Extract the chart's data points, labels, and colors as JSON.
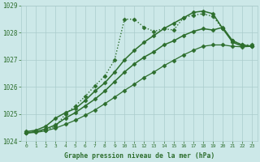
{
  "title": "Graphe pression niveau de la mer (hPa)",
  "bg_color": "#cce8e8",
  "grid_color": "#aacccc",
  "line_color": "#2d6e2d",
  "xlim": [
    -0.5,
    23.5
  ],
  "ylim": [
    1024.0,
    1029.0
  ],
  "yticks": [
    1024,
    1025,
    1026,
    1027,
    1028,
    1029
  ],
  "xticks": [
    0,
    1,
    2,
    3,
    4,
    5,
    6,
    7,
    8,
    9,
    10,
    11,
    12,
    13,
    14,
    15,
    16,
    17,
    18,
    19,
    20,
    21,
    22,
    23
  ],
  "series": [
    {
      "x": [
        0,
        1,
        2,
        3,
        4,
        5,
        6,
        7,
        8,
        9,
        10,
        11,
        12,
        13,
        14,
        15,
        16,
        17,
        18,
        19,
        20,
        21,
        22,
        23
      ],
      "y": [
        1024.3,
        1024.35,
        1024.4,
        1024.55,
        1025.0,
        1025.3,
        1025.65,
        1026.05,
        1026.4,
        1027.0,
        1028.5,
        1028.5,
        1028.2,
        1028.05,
        1028.15,
        1028.1,
        1028.55,
        1028.65,
        1028.7,
        1028.6,
        1028.15,
        1027.7,
        1027.55,
        1027.55
      ],
      "linestyle": ":",
      "marker": "D",
      "markersize": 2.5,
      "linewidth": 1.0
    },
    {
      "x": [
        0,
        1,
        2,
        3,
        4,
        5,
        6,
        7,
        8,
        9,
        10,
        11,
        12,
        13,
        14,
        15,
        16,
        17,
        18,
        19,
        20,
        21,
        22,
        23
      ],
      "y": [
        1024.35,
        1024.4,
        1024.55,
        1024.85,
        1025.05,
        1025.2,
        1025.5,
        1025.85,
        1026.15,
        1026.55,
        1027.0,
        1027.35,
        1027.65,
        1027.9,
        1028.15,
        1028.35,
        1028.55,
        1028.75,
        1028.8,
        1028.7,
        1028.15,
        1027.65,
        1027.5,
        1027.5
      ],
      "linestyle": "-",
      "marker": "D",
      "markersize": 2.5,
      "linewidth": 1.1
    },
    {
      "x": [
        0,
        1,
        2,
        3,
        4,
        5,
        6,
        7,
        8,
        9,
        10,
        11,
        12,
        13,
        14,
        15,
        16,
        17,
        18,
        19,
        20,
        21,
        22,
        23
      ],
      "y": [
        1024.3,
        1024.35,
        1024.45,
        1024.6,
        1024.85,
        1025.05,
        1025.3,
        1025.55,
        1025.85,
        1026.2,
        1026.55,
        1026.85,
        1027.1,
        1027.3,
        1027.55,
        1027.7,
        1027.9,
        1028.05,
        1028.15,
        1028.1,
        1028.2,
        1027.7,
        1027.55,
        1027.5
      ],
      "linestyle": "-",
      "marker": "D",
      "markersize": 2.5,
      "linewidth": 1.1
    },
    {
      "x": [
        0,
        1,
        2,
        3,
        4,
        5,
        6,
        7,
        8,
        9,
        10,
        11,
        12,
        13,
        14,
        15,
        16,
        17,
        18,
        19,
        20,
        21,
        22,
        23
      ],
      "y": [
        1024.3,
        1024.32,
        1024.38,
        1024.48,
        1024.62,
        1024.77,
        1024.95,
        1025.15,
        1025.38,
        1025.62,
        1025.87,
        1026.1,
        1026.35,
        1026.55,
        1026.78,
        1026.98,
        1027.18,
        1027.35,
        1027.5,
        1027.55,
        1027.55,
        1027.5,
        1027.48,
        1027.5
      ],
      "linestyle": "-",
      "marker": "D",
      "markersize": 2.5,
      "linewidth": 0.9
    }
  ]
}
